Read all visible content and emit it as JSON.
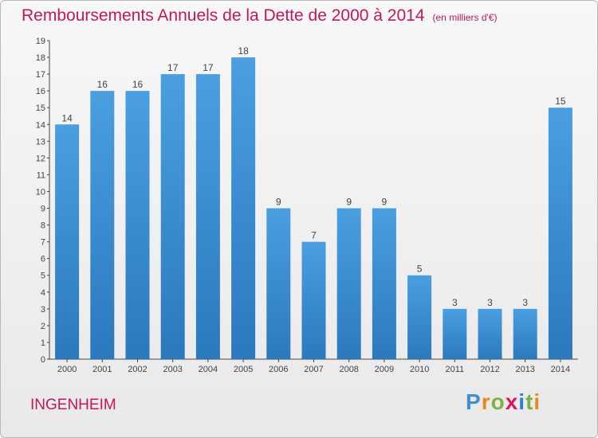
{
  "header": {
    "title": "Remboursements Annuels de la Dette de 2000 à 2014",
    "subtitle": "(en milliers d'€)"
  },
  "footer": {
    "commune": "INGENHEIM",
    "logo_text": "Proxiti",
    "logo_letters": [
      "P",
      "r",
      "o",
      "x",
      "i",
      "t",
      "i"
    ],
    "logo_colors": [
      "#3f8ecf",
      "#e8891a",
      "#7bb342",
      "#d81b60",
      "#2e7fcc",
      "#7bb342",
      "#e8891a"
    ]
  },
  "chart_data": {
    "type": "bar",
    "title": "Remboursements Annuels de la Dette de 2000 à 2014",
    "subtitle": "(en milliers d'€)",
    "xlabel": "",
    "ylabel": "",
    "categories": [
      "2000",
      "2001",
      "2002",
      "2003",
      "2004",
      "2005",
      "2006",
      "2007",
      "2008",
      "2009",
      "2010",
      "2011",
      "2012",
      "2013",
      "2014"
    ],
    "values": [
      14,
      16,
      16,
      17,
      17,
      18,
      9,
      7,
      9,
      9,
      5,
      3,
      3,
      3,
      15
    ],
    "ylim": [
      0,
      19
    ],
    "yticks": [
      "0",
      "1",
      "2",
      "3",
      "4",
      "5",
      "6",
      "7",
      "8",
      "9",
      "10",
      "11",
      "12",
      "13",
      "14",
      "15",
      "16",
      "17",
      "18",
      "19"
    ],
    "grid": false,
    "bar_color": "#4a9fe0",
    "bar_color_dark": "#2b79bd"
  }
}
